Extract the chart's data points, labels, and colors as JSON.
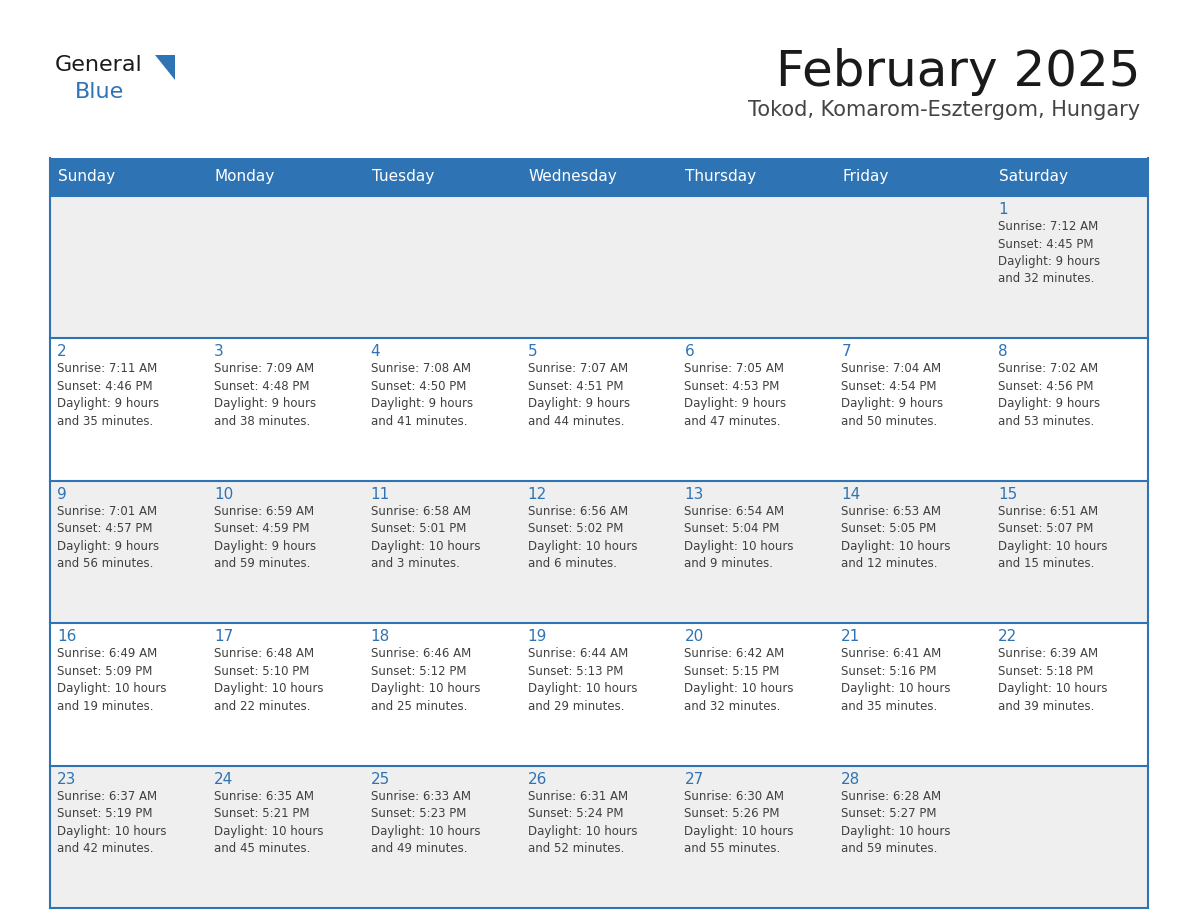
{
  "title": "February 2025",
  "subtitle": "Tokod, Komarom-Esztergom, Hungary",
  "days_of_week": [
    "Sunday",
    "Monday",
    "Tuesday",
    "Wednesday",
    "Thursday",
    "Friday",
    "Saturday"
  ],
  "header_bg": "#2E74B5",
  "header_text": "#FFFFFF",
  "border_color": "#2E74B5",
  "text_color": "#404040",
  "day_num_color": "#2E74B5",
  "logo_general_color": "#1a1a1a",
  "logo_blue_color": "#2E74B5",
  "row_bg_odd": "#EFEFEF",
  "row_bg_even": "#FFFFFF",
  "calendar_data": [
    [
      {
        "day": "",
        "info": ""
      },
      {
        "day": "",
        "info": ""
      },
      {
        "day": "",
        "info": ""
      },
      {
        "day": "",
        "info": ""
      },
      {
        "day": "",
        "info": ""
      },
      {
        "day": "",
        "info": ""
      },
      {
        "day": "1",
        "info": "Sunrise: 7:12 AM\nSunset: 4:45 PM\nDaylight: 9 hours\nand 32 minutes."
      }
    ],
    [
      {
        "day": "2",
        "info": "Sunrise: 7:11 AM\nSunset: 4:46 PM\nDaylight: 9 hours\nand 35 minutes."
      },
      {
        "day": "3",
        "info": "Sunrise: 7:09 AM\nSunset: 4:48 PM\nDaylight: 9 hours\nand 38 minutes."
      },
      {
        "day": "4",
        "info": "Sunrise: 7:08 AM\nSunset: 4:50 PM\nDaylight: 9 hours\nand 41 minutes."
      },
      {
        "day": "5",
        "info": "Sunrise: 7:07 AM\nSunset: 4:51 PM\nDaylight: 9 hours\nand 44 minutes."
      },
      {
        "day": "6",
        "info": "Sunrise: 7:05 AM\nSunset: 4:53 PM\nDaylight: 9 hours\nand 47 minutes."
      },
      {
        "day": "7",
        "info": "Sunrise: 7:04 AM\nSunset: 4:54 PM\nDaylight: 9 hours\nand 50 minutes."
      },
      {
        "day": "8",
        "info": "Sunrise: 7:02 AM\nSunset: 4:56 PM\nDaylight: 9 hours\nand 53 minutes."
      }
    ],
    [
      {
        "day": "9",
        "info": "Sunrise: 7:01 AM\nSunset: 4:57 PM\nDaylight: 9 hours\nand 56 minutes."
      },
      {
        "day": "10",
        "info": "Sunrise: 6:59 AM\nSunset: 4:59 PM\nDaylight: 9 hours\nand 59 minutes."
      },
      {
        "day": "11",
        "info": "Sunrise: 6:58 AM\nSunset: 5:01 PM\nDaylight: 10 hours\nand 3 minutes."
      },
      {
        "day": "12",
        "info": "Sunrise: 6:56 AM\nSunset: 5:02 PM\nDaylight: 10 hours\nand 6 minutes."
      },
      {
        "day": "13",
        "info": "Sunrise: 6:54 AM\nSunset: 5:04 PM\nDaylight: 10 hours\nand 9 minutes."
      },
      {
        "day": "14",
        "info": "Sunrise: 6:53 AM\nSunset: 5:05 PM\nDaylight: 10 hours\nand 12 minutes."
      },
      {
        "day": "15",
        "info": "Sunrise: 6:51 AM\nSunset: 5:07 PM\nDaylight: 10 hours\nand 15 minutes."
      }
    ],
    [
      {
        "day": "16",
        "info": "Sunrise: 6:49 AM\nSunset: 5:09 PM\nDaylight: 10 hours\nand 19 minutes."
      },
      {
        "day": "17",
        "info": "Sunrise: 6:48 AM\nSunset: 5:10 PM\nDaylight: 10 hours\nand 22 minutes."
      },
      {
        "day": "18",
        "info": "Sunrise: 6:46 AM\nSunset: 5:12 PM\nDaylight: 10 hours\nand 25 minutes."
      },
      {
        "day": "19",
        "info": "Sunrise: 6:44 AM\nSunset: 5:13 PM\nDaylight: 10 hours\nand 29 minutes."
      },
      {
        "day": "20",
        "info": "Sunrise: 6:42 AM\nSunset: 5:15 PM\nDaylight: 10 hours\nand 32 minutes."
      },
      {
        "day": "21",
        "info": "Sunrise: 6:41 AM\nSunset: 5:16 PM\nDaylight: 10 hours\nand 35 minutes."
      },
      {
        "day": "22",
        "info": "Sunrise: 6:39 AM\nSunset: 5:18 PM\nDaylight: 10 hours\nand 39 minutes."
      }
    ],
    [
      {
        "day": "23",
        "info": "Sunrise: 6:37 AM\nSunset: 5:19 PM\nDaylight: 10 hours\nand 42 minutes."
      },
      {
        "day": "24",
        "info": "Sunrise: 6:35 AM\nSunset: 5:21 PM\nDaylight: 10 hours\nand 45 minutes."
      },
      {
        "day": "25",
        "info": "Sunrise: 6:33 AM\nSunset: 5:23 PM\nDaylight: 10 hours\nand 49 minutes."
      },
      {
        "day": "26",
        "info": "Sunrise: 6:31 AM\nSunset: 5:24 PM\nDaylight: 10 hours\nand 52 minutes."
      },
      {
        "day": "27",
        "info": "Sunrise: 6:30 AM\nSunset: 5:26 PM\nDaylight: 10 hours\nand 55 minutes."
      },
      {
        "day": "28",
        "info": "Sunrise: 6:28 AM\nSunset: 5:27 PM\nDaylight: 10 hours\nand 59 minutes."
      },
      {
        "day": "",
        "info": ""
      }
    ]
  ]
}
